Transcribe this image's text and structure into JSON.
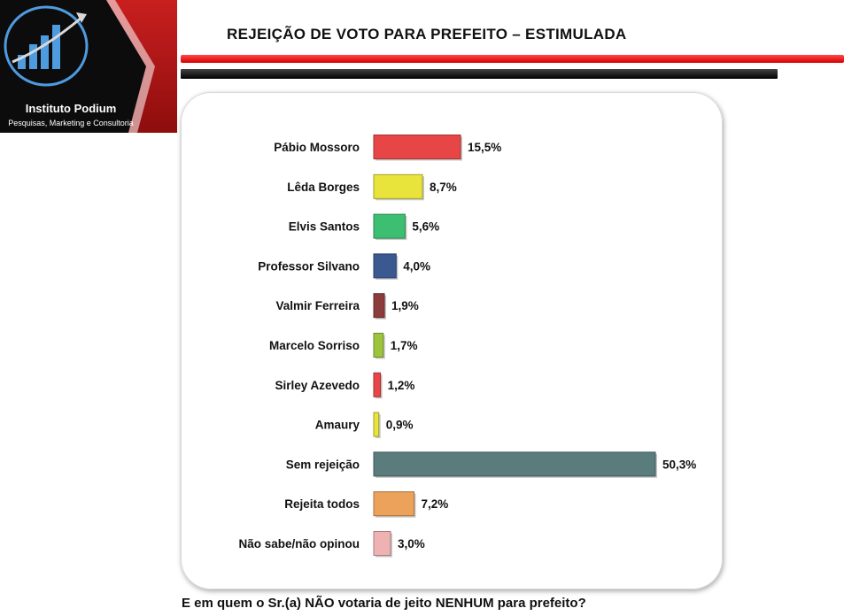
{
  "logo": {
    "name": "Instituto Podium",
    "tagline": "Pesquisas, Marketing e Consultoria"
  },
  "title": "REJEIÇÃO DE VOTO PARA PREFEITO – ESTIMULADA",
  "question": "E em quem o Sr.(a) NÃO votaria de jeito NENHUM para prefeito?",
  "chart_data": {
    "type": "bar",
    "orientation": "horizontal",
    "title": "",
    "xlabel": "",
    "ylabel": "",
    "unit": "%",
    "xlim": [
      0,
      50.3
    ],
    "grid": false,
    "legend": "none",
    "categories": [
      "Pábio Mossoro",
      "Lêda Borges",
      "Elvis Santos",
      "Professor Silvano",
      "Valmir Ferreira",
      "Marcelo Sorriso",
      "Sirley Azevedo",
      "Amaury",
      "Sem rejeição",
      "Rejeita todos",
      "Não sabe/não opinou"
    ],
    "values": [
      15.5,
      8.7,
      5.6,
      4.0,
      1.9,
      1.7,
      1.2,
      0.9,
      50.3,
      7.2,
      3.0
    ],
    "value_labels": [
      "15,5%",
      "8,7%",
      "5,6%",
      "4,0%",
      "1,9%",
      "1,7%",
      "1,2%",
      "0,9%",
      "50,3%",
      "7,2%",
      "3,0%"
    ],
    "colors": [
      "#e84646",
      "#e8e43c",
      "#3dbf72",
      "#3b5891",
      "#8e3b3b",
      "#9cc43d",
      "#e84646",
      "#e8e43c",
      "#5a7c7c",
      "#eda25c",
      "#eeb2b2"
    ]
  }
}
